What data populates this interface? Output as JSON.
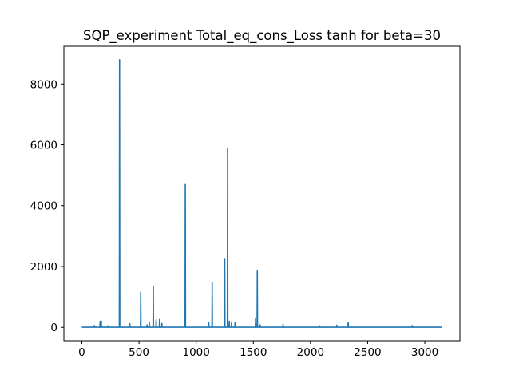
{
  "chart_data": {
    "type": "line",
    "title": "SQP_experiment Total_eq_cons_Loss tanh for beta=30",
    "xlabel": "",
    "ylabel": "",
    "xlim": [
      -157,
      3307
    ],
    "ylim": [
      -440,
      9240
    ],
    "xticks": [
      0,
      500,
      1000,
      1500,
      2000,
      2500,
      3000
    ],
    "yticks": [
      0,
      2000,
      4000,
      6000,
      8000
    ],
    "grid": false,
    "legend": "none",
    "color": "#1f77b4",
    "baseline": 5,
    "spikes": [
      {
        "x": 110,
        "y": 60
      },
      {
        "x": 160,
        "y": 200
      },
      {
        "x": 170,
        "y": 210
      },
      {
        "x": 230,
        "y": 50
      },
      {
        "x": 330,
        "y": 8800
      },
      {
        "x": 420,
        "y": 120
      },
      {
        "x": 515,
        "y": 1160
      },
      {
        "x": 570,
        "y": 80
      },
      {
        "x": 590,
        "y": 170
      },
      {
        "x": 625,
        "y": 1360
      },
      {
        "x": 650,
        "y": 250
      },
      {
        "x": 680,
        "y": 260
      },
      {
        "x": 700,
        "y": 130
      },
      {
        "x": 905,
        "y": 4720
      },
      {
        "x": 1110,
        "y": 150
      },
      {
        "x": 1140,
        "y": 1480
      },
      {
        "x": 1250,
        "y": 2260
      },
      {
        "x": 1275,
        "y": 5880
      },
      {
        "x": 1290,
        "y": 200
      },
      {
        "x": 1310,
        "y": 180
      },
      {
        "x": 1340,
        "y": 150
      },
      {
        "x": 1520,
        "y": 310
      },
      {
        "x": 1535,
        "y": 1850
      },
      {
        "x": 1560,
        "y": 80
      },
      {
        "x": 1760,
        "y": 100
      },
      {
        "x": 2080,
        "y": 50
      },
      {
        "x": 2230,
        "y": 70
      },
      {
        "x": 2330,
        "y": 170
      },
      {
        "x": 2890,
        "y": 60
      }
    ],
    "x_end": 3150
  }
}
